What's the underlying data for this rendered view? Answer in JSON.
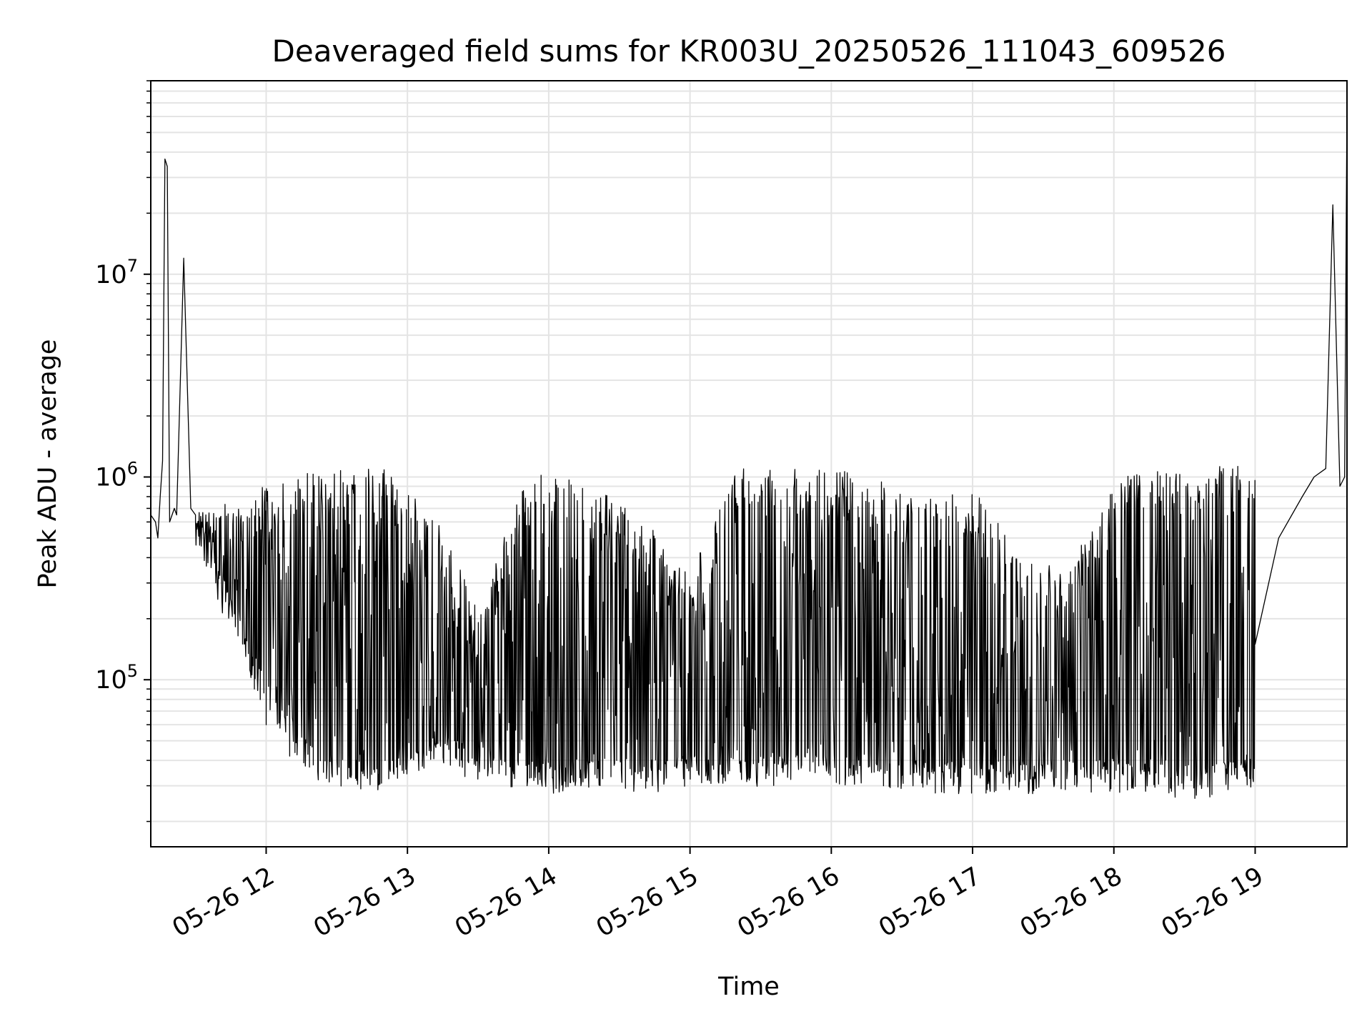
{
  "chart_data": {
    "type": "line",
    "title": "Deaveraged field sums for KR003U_20250526_111043_609526",
    "xlabel": "Time",
    "ylabel": "Peak ADU - average",
    "y_scale": "log",
    "grid": true,
    "line_color": "#000000",
    "x_range": [
      "05-26 11:11",
      "05-26 19:39"
    ],
    "ylim": [
      15000,
      90000000
    ],
    "x_ticks": [
      "05-26 12",
      "05-26 13",
      "05-26 14",
      "05-26 15",
      "05-26 16",
      "05-26 17",
      "05-26 18",
      "05-26 19"
    ],
    "y_ticks": [
      {
        "base": "10",
        "exp": "5",
        "value": 100000
      },
      {
        "base": "10",
        "exp": "6",
        "value": 1000000
      },
      {
        "base": "10",
        "exp": "7",
        "value": 10000000
      }
    ],
    "series": [
      {
        "x": [
          "05-26 11:11",
          "05-26 11:13",
          "05-26 11:14",
          "05-26 11:15",
          "05-26 11:16",
          "05-26 11:17",
          "05-26 11:18",
          "05-26 11:19",
          "05-26 11:21",
          "05-26 11:22",
          "05-26 11:25",
          "05-26 11:28",
          "05-26 11:30",
          "05-26 11:35",
          "05-26 11:40",
          "05-26 11:45",
          "05-26 11:50",
          "05-26 11:55",
          "05-26 12:00",
          "05-26 12:10",
          "05-26 12:20",
          "05-26 12:30",
          "05-26 12:40",
          "05-26 12:50",
          "05-26 13:00",
          "05-26 13:10",
          "05-26 13:20",
          "05-26 13:30",
          "05-26 13:40",
          "05-26 13:50",
          "05-26 14:00",
          "05-26 14:10",
          "05-26 14:20",
          "05-26 14:30",
          "05-26 14:40",
          "05-26 14:50",
          "05-26 15:00",
          "05-26 15:10",
          "05-26 15:20",
          "05-26 15:30",
          "05-26 15:40",
          "05-26 15:50",
          "05-26 16:00",
          "05-26 16:10",
          "05-26 16:20",
          "05-26 16:30",
          "05-26 16:40",
          "05-26 16:50",
          "05-26 17:00",
          "05-26 17:10",
          "05-26 17:20",
          "05-26 17:30",
          "05-26 17:40",
          "05-26 17:50",
          "05-26 18:00",
          "05-26 18:10",
          "05-26 18:20",
          "05-26 18:30",
          "05-26 18:40",
          "05-26 18:50",
          "05-26 19:00",
          "05-26 19:10",
          "05-26 19:20",
          "05-26 19:25",
          "05-26 19:30",
          "05-26 19:33",
          "05-26 19:36",
          "05-26 19:38",
          "05-26 19:39"
        ],
        "y": [
          650000,
          600000,
          500000,
          800000,
          1200000,
          37000000,
          34000000,
          600000,
          700000,
          650000,
          12000000,
          700000,
          650000,
          600000,
          400000,
          250000,
          150000,
          90000,
          60000,
          42000,
          38000,
          550000,
          650000,
          500000,
          300000,
          100000,
          50000,
          42000,
          38000,
          500000,
          450000,
          400000,
          300000,
          120000,
          60000,
          45000,
          40000,
          42000,
          45000,
          420000,
          480000,
          500000,
          520000,
          450000,
          380000,
          250000,
          120000,
          60000,
          50000,
          45000,
          42000,
          40000,
          45000,
          42000,
          40000,
          45000,
          300000,
          400000,
          500000,
          600000,
          150000,
          500000,
          800000,
          1000000,
          1100000,
          22000000,
          900000,
          1000000,
          70000000
        ],
        "y_envelope": {
          "x": [
            "05-26 11:30",
            "05-26 11:50",
            "05-26 12:00",
            "05-26 12:20",
            "05-26 12:30",
            "05-26 12:50",
            "05-26 13:00",
            "05-26 13:15",
            "05-26 13:30",
            "05-26 13:50",
            "05-26 14:00",
            "05-26 14:20",
            "05-26 14:40",
            "05-26 15:00",
            "05-26 15:20",
            "05-26 15:40",
            "05-26 16:00",
            "05-26 16:20",
            "05-26 16:40",
            "05-26 17:00",
            "05-26 17:20",
            "05-26 17:40",
            "05-26 18:00",
            "05-26 18:20",
            "05-26 18:40",
            "05-26 19:00"
          ],
          "low": [
            500000,
            150000,
            80000,
            38000,
            35000,
            32000,
            40000,
            45000,
            35000,
            32000,
            32000,
            35000,
            32000,
            35000,
            35000,
            35000,
            35000,
            35000,
            32000,
            32000,
            32000,
            33000,
            32000,
            31000,
            30000,
            35000
          ],
          "high": [
            700000,
            700000,
            900000,
            1000000,
            1000000,
            1000000,
            900000,
            500000,
            200000,
            900000,
            1000000,
            800000,
            600000,
            300000,
            1000000,
            1000000,
            1000000,
            900000,
            700000,
            800000,
            400000,
            300000,
            900000,
            1000000,
            1000000,
            1100000
          ]
        }
      }
    ]
  }
}
